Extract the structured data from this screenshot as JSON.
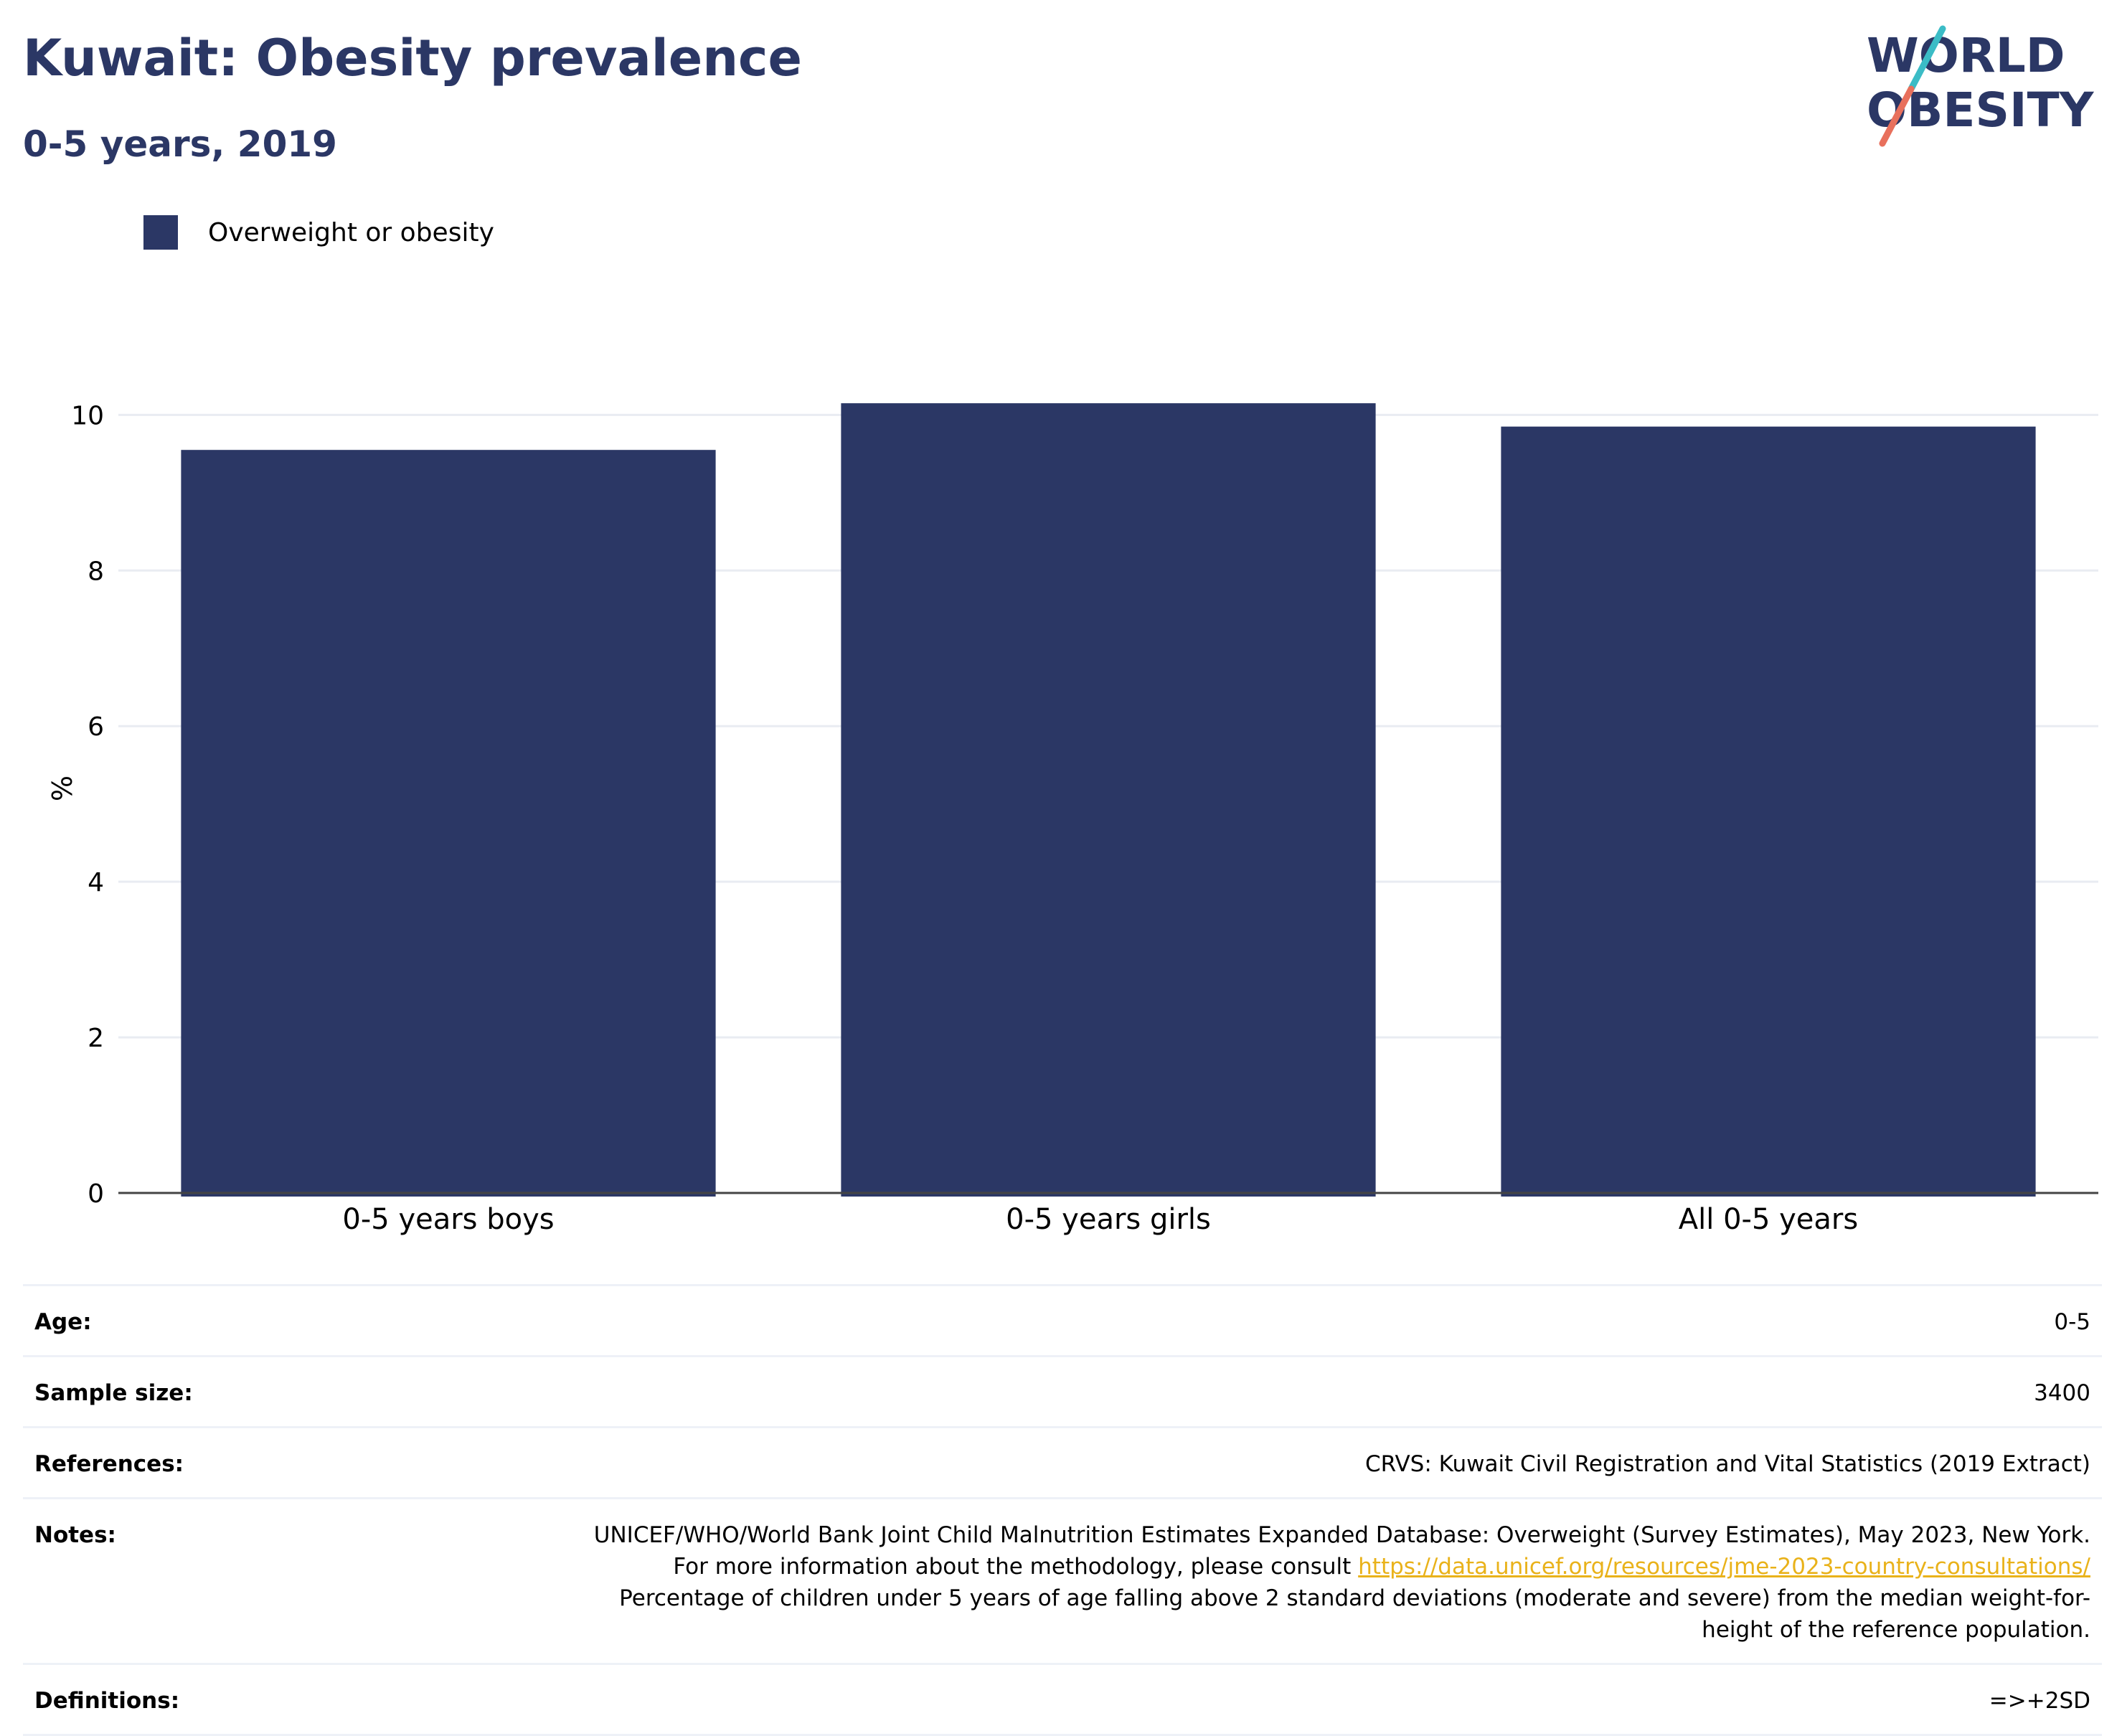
{
  "header": {
    "title": "Kuwait: Obesity prevalence",
    "subtitle": "0-5 years, 2019"
  },
  "logo": {
    "line1": "WORLD",
    "line2": "OBESITY"
  },
  "legend": {
    "label": "Overweight or obesity"
  },
  "colors": {
    "bar": "#2b3765",
    "accent_teal": "#3bbcc6",
    "accent_coral": "#e8705c",
    "link": "#e9b21a"
  },
  "chart_data": {
    "type": "bar",
    "categories": [
      "0-5 years boys",
      "0-5 years girls",
      "All 0-5 years"
    ],
    "series": [
      {
        "name": "Overweight or obesity",
        "values": [
          9.55,
          10.15,
          9.85
        ]
      }
    ],
    "ylabel": "%",
    "ylim": [
      0,
      10.4
    ],
    "yticks": [
      0,
      2,
      4,
      6,
      8,
      10
    ],
    "grid": true,
    "legend_position": "top-left"
  },
  "info_table": {
    "age": {
      "key": "Age:",
      "value": "0-5"
    },
    "sample_size": {
      "key": "Sample size:",
      "value": "3400"
    },
    "references": {
      "key": "References:",
      "value": "CRVS: Kuwait Civil Registration and Vital Statistics (2019 Extract)"
    },
    "notes": {
      "key": "Notes:",
      "text_before": "UNICEF/WHO/World Bank Joint Child Malnutrition Estimates Expanded Database: Overweight (Survey Estimates), May 2023, New York. For more information about the methodology, please consult ",
      "link": "https://data.unicef.org/resources/jme-2023-country-consultations/",
      "text_after": "Percentage of children under 5 years of age falling above 2 standard deviations (moderate and severe) from the median weight-for-height of the reference population."
    },
    "definitions": {
      "key": "Definitions:",
      "value": "=>+2SD"
    }
  }
}
